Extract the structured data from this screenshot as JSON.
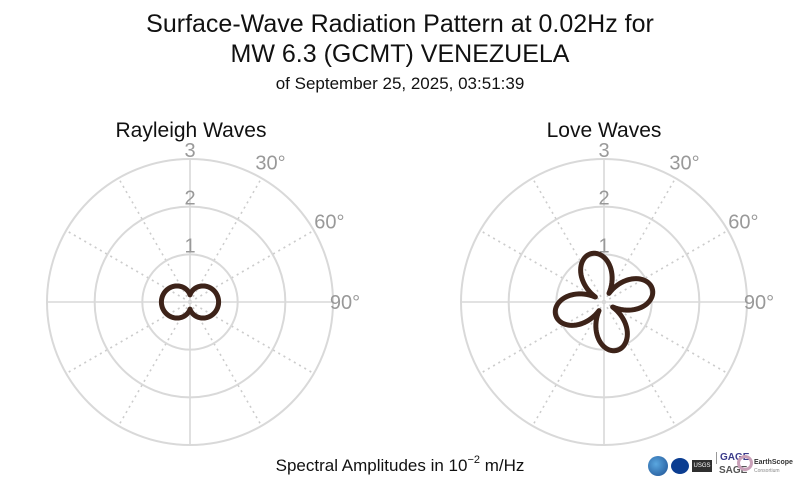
{
  "title": {
    "line1": "Surface-Wave Radiation Pattern at 0.02Hz for",
    "line2": "MW 6.3 (GCMT) VENEZUELA",
    "line3": "of September 25, 2025, 03:51:39"
  },
  "caption": {
    "prefix": "Spectral Amplitudes in ",
    "base": "10",
    "exponent": "−2",
    "suffix": " m/Hz"
  },
  "logos": {
    "usgs": "USGS",
    "gage": "GAGE",
    "sage": "SAGE",
    "earthscope": "EarthScope",
    "consortium": "Consortium"
  },
  "colors": {
    "pattern": "#3d2319",
    "grid_major": "#d9d9d9",
    "grid_minor": "#cccccc",
    "tick_label": "#999999"
  },
  "chart_data": [
    {
      "type": "polar-line",
      "title": "Rayleigh Waves",
      "radial_ticks": [
        "1",
        "2",
        "3"
      ],
      "r_max": 3,
      "angle_ticks": [
        "30°",
        "60°",
        "90°"
      ],
      "angle_tick_values": [
        30,
        60,
        90
      ],
      "grid": true,
      "pattern": {
        "kind": "two-lobe",
        "amplitude": 0.6,
        "axis_deg": 90
      }
    },
    {
      "type": "polar-line",
      "title": "Love Waves",
      "radial_ticks": [
        "1",
        "2",
        "3"
      ],
      "r_max": 3,
      "angle_ticks": [
        "30°",
        "60°",
        "90°"
      ],
      "angle_tick_values": [
        30,
        60,
        90
      ],
      "grid": true,
      "pattern": {
        "kind": "four-lobe",
        "amplitude": 1.05,
        "offset_deg": 30
      }
    }
  ]
}
